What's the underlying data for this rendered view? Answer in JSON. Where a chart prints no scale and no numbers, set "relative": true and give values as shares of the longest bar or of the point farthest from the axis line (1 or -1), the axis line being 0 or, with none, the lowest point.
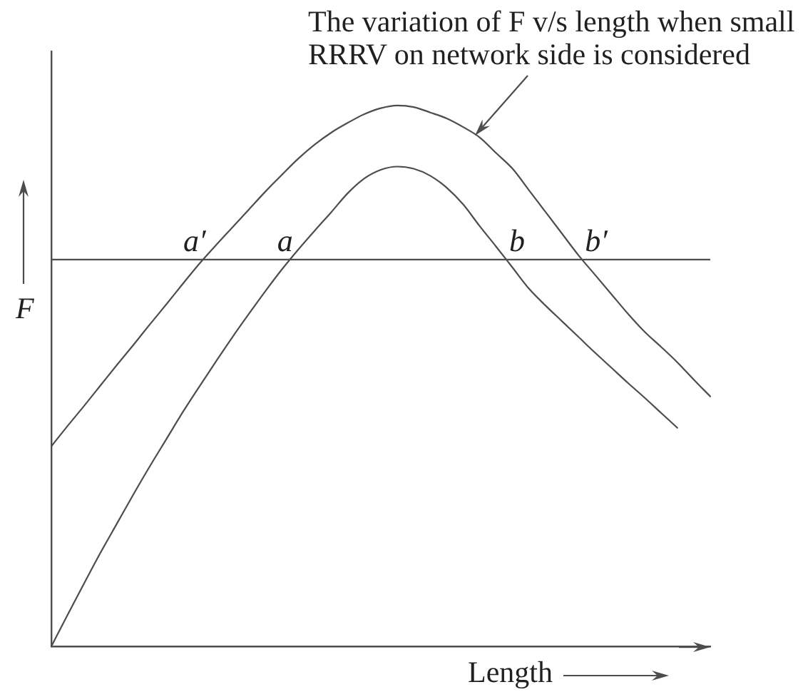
{
  "chart_data": {
    "type": "line",
    "relative": true,
    "xlabel": "Length",
    "ylabel": "F",
    "categories": [
      null,
      null,
      null,
      null,
      null,
      null,
      null,
      null,
      null,
      null,
      null,
      null,
      null,
      null,
      null,
      null,
      null,
      null,
      null,
      null,
      null,
      null,
      null,
      null,
      null,
      null,
      null,
      null,
      null,
      null,
      null,
      null,
      null,
      null,
      null,
      null,
      null,
      null,
      null,
      null,
      null
    ],
    "series": [
      {
        "color": "#4d4d4d",
        "values": [
          0.37,
          0.408,
          0.445,
          0.483,
          0.521,
          0.558,
          0.596,
          0.633,
          0.671,
          0.708,
          0.742,
          0.775,
          0.808,
          0.841,
          0.872,
          0.902,
          0.928,
          0.95,
          0.968,
          0.984,
          0.995,
          1.0,
          0.997,
          0.987,
          0.976,
          0.96,
          0.941,
          0.912,
          0.883,
          0.843,
          0.803,
          0.763,
          0.723,
          0.687,
          0.651,
          0.615,
          0.582,
          0.554,
          0.525,
          0.493,
          0.462
        ]
      },
      {
        "color": "#4d4d4d",
        "values": [
          0,
          0.059,
          0.117,
          0.174,
          0.228,
          0.282,
          0.334,
          0.384,
          0.434,
          0.481,
          0.527,
          0.572,
          0.615,
          0.657,
          0.697,
          0.734,
          0.769,
          0.803,
          0.838,
          0.865,
          0.881,
          0.887,
          0.883,
          0.87,
          0.848,
          0.817,
          0.777,
          0.739,
          0.7,
          0.661,
          0.63,
          0.601,
          0.572,
          0.543,
          0.515,
          0.487,
          0.46,
          0.432,
          0.404,
          null,
          null
        ]
      }
    ],
    "ref_lines": [
      {
        "axis": "y",
        "value": 0.715,
        "color": "#4d4d4d"
      }
    ],
    "annotations": [
      {
        "text": "a′",
        "y": 0.715
      },
      {
        "text": "a",
        "y": 0.715
      },
      {
        "text": "b",
        "y": 0.715
      },
      {
        "text": "b′",
        "y": 0.715
      },
      "The variation of F v/s length when small RRRV on network side is considered"
    ],
    "marker": "none",
    "line_style": "solid",
    "tick_labels": false
  }
}
